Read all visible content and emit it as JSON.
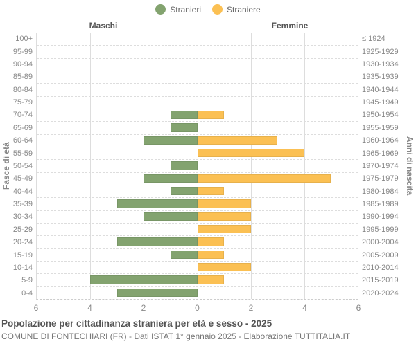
{
  "legend": {
    "items": [
      {
        "label": "Stranieri",
        "color": "#83a36f"
      },
      {
        "label": "Straniere",
        "color": "#fbc053"
      }
    ]
  },
  "headers": {
    "left": "Maschi",
    "right": "Femmine"
  },
  "axis": {
    "left_title": "Fasce di età",
    "right_title": "Anni di nascita",
    "x_tick_labels": [
      "6",
      "4",
      "2",
      "0",
      "2",
      "4",
      "6"
    ],
    "x_max_per_side": 6
  },
  "chart_data": {
    "type": "bar",
    "subtype": "population-pyramid",
    "title": "Popolazione per cittadinanza straniera per età e sesso - 2025",
    "categories": [
      "100+",
      "95-99",
      "90-94",
      "85-89",
      "80-84",
      "75-79",
      "70-74",
      "65-69",
      "60-64",
      "55-59",
      "50-54",
      "45-49",
      "40-44",
      "35-39",
      "30-34",
      "25-29",
      "20-24",
      "15-19",
      "10-14",
      "5-9",
      "0-4"
    ],
    "right_axis_categories": [
      "≤ 1924",
      "1925-1929",
      "1930-1934",
      "1935-1939",
      "1940-1944",
      "1945-1949",
      "1950-1954",
      "1955-1959",
      "1960-1964",
      "1965-1969",
      "1970-1974",
      "1975-1979",
      "1980-1984",
      "1985-1989",
      "1990-1994",
      "1995-1999",
      "2000-2004",
      "2005-2009",
      "2010-2014",
      "2015-2019",
      "2020-2024"
    ],
    "series": [
      {
        "name": "Stranieri",
        "sex": "Maschi",
        "side": "left",
        "color": "#83a36f",
        "values": [
          0,
          0,
          0,
          0,
          0,
          0,
          1,
          1,
          2,
          0,
          1,
          2,
          1,
          3,
          2,
          0,
          3,
          1,
          0,
          4,
          3
        ]
      },
      {
        "name": "Straniere",
        "sex": "Femmine",
        "side": "right",
        "color": "#fbc053",
        "values": [
          0,
          0,
          0,
          0,
          0,
          0,
          1,
          0,
          3,
          4,
          0,
          5,
          1,
          2,
          2,
          2,
          1,
          1,
          2,
          1,
          0
        ]
      }
    ],
    "x_range_per_side": [
      0,
      6
    ],
    "grid": true,
    "legend_position": "top"
  },
  "footer": {
    "title": "Popolazione per cittadinanza straniera per età e sesso - 2025",
    "subtitle": "COMUNE DI FONTECHIARI (FR) - Dati ISTAT 1° gennaio 2025 - Elaborazione TUTTITALIA.IT"
  }
}
